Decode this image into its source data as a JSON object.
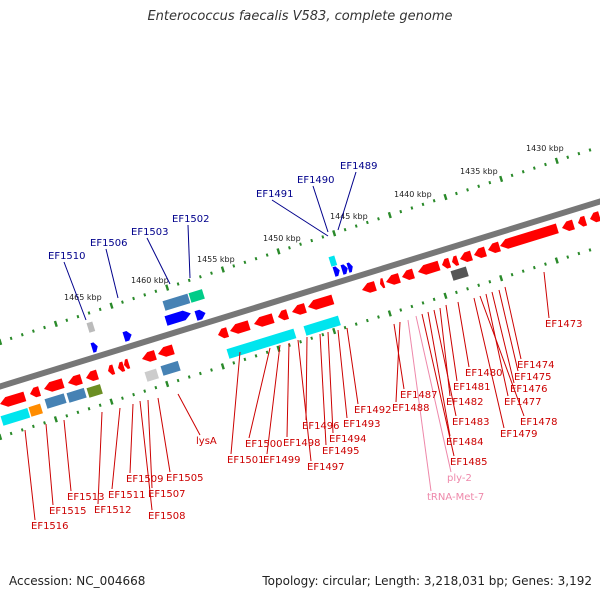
{
  "title": "Enterococcus faecalis V583, complete genome",
  "footer": {
    "accession": "Accession: NC_004668",
    "topology": "Topology: circular; Length: 3,218,031 bp; Genes: 3,192"
  },
  "colors": {
    "backbone": "#777777",
    "tick": "#2a8a2a",
    "forward_label": "#00008b",
    "reverse_label": "#cc0000",
    "rna_label": "#ee88aa",
    "gene_red": "#ff0000",
    "gene_blue": "#0000ff",
    "gene_cyan": "#00e5ee",
    "gene_steel": "#4682b4",
    "gene_green": "#00cc88",
    "gene_gray": "#888888"
  },
  "scale_labels": [
    "1430 kbp",
    "1435 kbp",
    "1440 kbp",
    "1445 kbp",
    "1450 kbp",
    "1455 kbp",
    "1460 kbp",
    "1465 kbp"
  ],
  "forward_genes": [
    "EF1489",
    "EF1490",
    "EF1491",
    "EF1502",
    "EF1503",
    "EF1506",
    "EF1510"
  ],
  "reverse_genes": [
    "EF1473",
    "EF1474",
    "EF1475",
    "EF1476",
    "EF1477",
    "EF1478",
    "EF1479",
    "EF1480",
    "EF1481",
    "EF1482",
    "EF1483",
    "EF1484",
    "EF1485",
    "ply-2",
    "tRNA-Met-7",
    "EF1488",
    "EF1487",
    "EF1492",
    "EF1493",
    "EF1494",
    "EF1495",
    "EF1496",
    "EF1497",
    "EF1498",
    "EF1499",
    "EF1500",
    "EF1501",
    "lysA",
    "EF1505",
    "EF1507",
    "EF1508",
    "EF1509",
    "EF1511",
    "EF1512",
    "EF1513",
    "EF1515",
    "EF1516"
  ]
}
